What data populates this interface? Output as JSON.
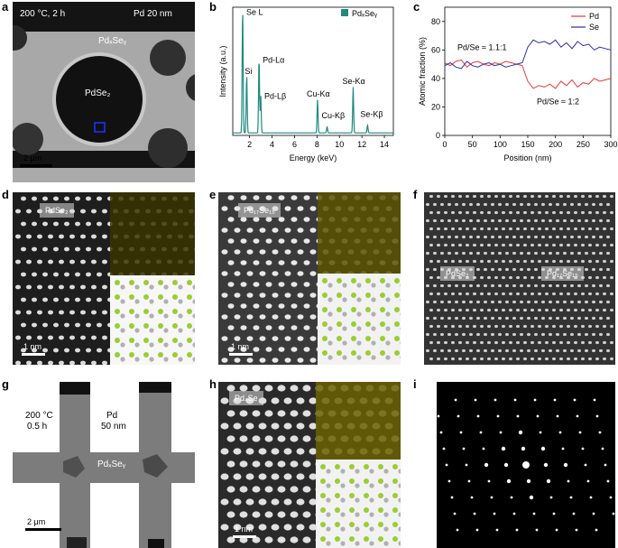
{
  "labels": {
    "a": "a",
    "b": "b",
    "c": "c",
    "d": "d",
    "e": "e",
    "f": "f",
    "g": "g",
    "h": "h",
    "i": "i"
  },
  "panel_a": {
    "cond": "200 °C, 2 h",
    "film": "Pd 20 nm",
    "phase1": "PdₓSeᵧ",
    "phase2": "PdSe₂",
    "scale": "2 μm"
  },
  "panel_d": {
    "chip": "PdSe₂",
    "scale": "1 nm"
  },
  "panel_e": {
    "chip": "Pd₁₇Se₁₅",
    "scale": "1 nm"
  },
  "panel_f": {
    "left": "PdSe₂",
    "right": "Pd₁₇Se₁₅"
  },
  "panel_g": {
    "cond1": "200 °C",
    "cond2": "0.5 h",
    "film1": "Pd",
    "film2": "50 nm",
    "phase": "PdₓSeᵧ",
    "scale": "2 μm"
  },
  "panel_h": {
    "chip": "Pd₄Se",
    "scale": "1 nm"
  },
  "chart_data": [
    {
      "type": "line",
      "panel": "b",
      "xlabel": "Energy (keV)",
      "ylabel": "Intensity (a.u.)",
      "xlim": [
        0.5,
        14.8
      ],
      "ylim": [
        0,
        1.0
      ],
      "xticks": [
        2,
        4,
        6,
        8,
        10,
        12,
        14
      ],
      "legend": "PdₓSeᵧ",
      "color": "#1f8a7e",
      "peaks": [
        {
          "x": 1.38,
          "y": 0.97,
          "label": "Se L"
        },
        {
          "x": 1.74,
          "y": 0.45,
          "label": "Si"
        },
        {
          "x": 2.84,
          "y": 0.58,
          "label": "Pd-Lα"
        },
        {
          "x": 2.99,
          "y": 0.3,
          "label": "Pd-Lβ"
        },
        {
          "x": 8.05,
          "y": 0.26,
          "label": "Cu-Kα"
        },
        {
          "x": 8.9,
          "y": 0.05,
          "label": "Cu-Kβ"
        },
        {
          "x": 11.22,
          "y": 0.36,
          "label": "Se-Kα"
        },
        {
          "x": 12.5,
          "y": 0.06,
          "label": "Se-Kβ"
        }
      ],
      "peak_labels": {
        "se_l": "Se L",
        "si": "Si",
        "pd_la": "Pd-Lα",
        "pd_lb": "Pd-Lβ",
        "cu_ka": "Cu-Kα",
        "cu_kb": "Cu-Kβ",
        "se_ka": "Se-Kα",
        "se_kb": "Se-Kβ"
      }
    },
    {
      "type": "line",
      "panel": "c",
      "xlabel": "Position (nm)",
      "ylabel": "Atomic fraction (%)",
      "xlim": [
        0,
        300
      ],
      "ylim": [
        0,
        90
      ],
      "xticks": [
        0,
        50,
        100,
        150,
        200,
        250,
        300
      ],
      "yticks": [
        0,
        20,
        40,
        60,
        80
      ],
      "legend": "top-right",
      "annotation1": "Pd/Se ≈ 1.1:1",
      "annotation2": "Pd/Se ≈ 1:2",
      "series": [
        {
          "name": "Pd",
          "color": "#e8383d",
          "x": [
            0,
            10,
            20,
            30,
            40,
            50,
            60,
            70,
            80,
            90,
            100,
            110,
            120,
            130,
            140,
            150,
            160,
            170,
            180,
            190,
            200,
            210,
            220,
            230,
            240,
            250,
            260,
            270,
            280,
            290,
            300
          ],
          "y": [
            51,
            49,
            52,
            53,
            48,
            51,
            52,
            50,
            49,
            51,
            50,
            52,
            51,
            50,
            49,
            38,
            33,
            35,
            34,
            36,
            33,
            38,
            35,
            39,
            34,
            37,
            36,
            40,
            38,
            39,
            40
          ]
        },
        {
          "name": "Se",
          "color": "#2c2ca8",
          "x": [
            0,
            10,
            20,
            30,
            40,
            50,
            60,
            70,
            80,
            90,
            100,
            110,
            120,
            130,
            140,
            150,
            160,
            170,
            180,
            190,
            200,
            210,
            220,
            230,
            240,
            250,
            260,
            270,
            280,
            290,
            300
          ],
          "y": [
            49,
            51,
            48,
            47,
            52,
            49,
            48,
            50,
            51,
            49,
            50,
            48,
            49,
            50,
            51,
            62,
            67,
            65,
            66,
            64,
            67,
            62,
            65,
            61,
            66,
            63,
            64,
            60,
            62,
            61,
            60
          ]
        }
      ]
    }
  ]
}
